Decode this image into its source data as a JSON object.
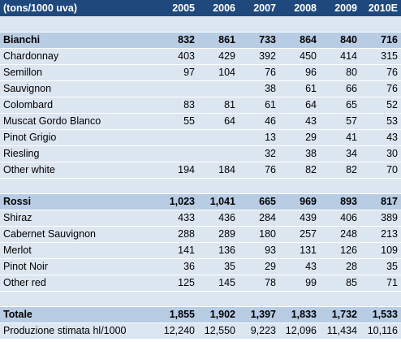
{
  "header": {
    "label": "(tons/1000 uva)",
    "years": [
      "2005",
      "2006",
      "2007",
      "2008",
      "2009",
      "2010E"
    ]
  },
  "sections": [
    {
      "name": "Bianchi",
      "totals": [
        "832",
        "861",
        "733",
        "864",
        "840",
        "716"
      ],
      "rows": [
        {
          "label": "Chardonnay",
          "values": [
            "403",
            "429",
            "392",
            "450",
            "414",
            "315"
          ]
        },
        {
          "label": "Semillon",
          "values": [
            "97",
            "104",
            "76",
            "96",
            "80",
            "76"
          ]
        },
        {
          "label": "Sauvignon",
          "values": [
            "",
            "",
            "38",
            "61",
            "66",
            "76"
          ]
        },
        {
          "label": "Colombard",
          "values": [
            "83",
            "81",
            "61",
            "64",
            "65",
            "52"
          ]
        },
        {
          "label": "Muscat Gordo Blanco",
          "values": [
            "55",
            "64",
            "46",
            "43",
            "57",
            "53"
          ]
        },
        {
          "label": "Pinot Grigio",
          "values": [
            "",
            "",
            "13",
            "29",
            "41",
            "43"
          ]
        },
        {
          "label": "Riesling",
          "values": [
            "",
            "",
            "32",
            "38",
            "34",
            "30"
          ]
        },
        {
          "label": "Other white",
          "values": [
            "194",
            "184",
            "76",
            "82",
            "82",
            "70"
          ]
        }
      ]
    },
    {
      "name": "Rossi",
      "totals": [
        "1,023",
        "1,041",
        "665",
        "969",
        "893",
        "817"
      ],
      "rows": [
        {
          "label": "Shiraz",
          "values": [
            "433",
            "436",
            "284",
            "439",
            "406",
            "389"
          ]
        },
        {
          "label": "Cabernet Sauvignon",
          "values": [
            "288",
            "289",
            "180",
            "257",
            "248",
            "213"
          ]
        },
        {
          "label": "Merlot",
          "values": [
            "141",
            "136",
            "93",
            "131",
            "126",
            "109"
          ]
        },
        {
          "label": "Pinot Noir",
          "values": [
            "36",
            "35",
            "29",
            "43",
            "28",
            "35"
          ]
        },
        {
          "label": "Other red",
          "values": [
            "125",
            "145",
            "78",
            "99",
            "85",
            "71"
          ]
        }
      ]
    }
  ],
  "total": {
    "label": "Totale",
    "values": [
      "1,855",
      "1,902",
      "1,397",
      "1,833",
      "1,732",
      "1,533"
    ]
  },
  "production": {
    "label": "Produzione stimata hl/1000",
    "values": [
      "12,240",
      "12,550",
      "9,223",
      "12,096",
      "11,434",
      "10,116"
    ]
  },
  "colors": {
    "header_bg": "#1f497d",
    "band_light": "#dce6f1",
    "band_dark": "#b8cce4"
  }
}
